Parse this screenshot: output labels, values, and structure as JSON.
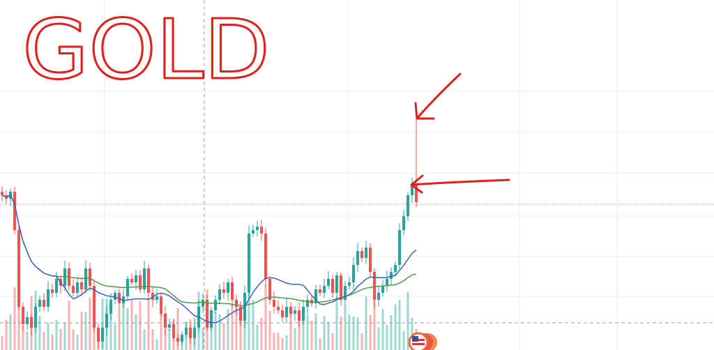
{
  "annotation_text": "GOLD",
  "colors": {
    "up": "#26a69a",
    "down": "#ef5350",
    "ma_fast": "#3f5fbf",
    "ma_slow": "#4c9a44",
    "annotation": "#e0201c",
    "grid": "#eeeeee",
    "crosshair": "#999999",
    "price_line": "#d0785a"
  },
  "chart_data": {
    "type": "candlestick",
    "title": "",
    "xlabel": "",
    "ylabel": "",
    "axis_labels_shown": false,
    "grid": true,
    "ylim": [
      0,
      500
    ],
    "closes": [
      220,
      215,
      225,
      170,
      60,
      35,
      45,
      30,
      60,
      70,
      60,
      85,
      80,
      100,
      90,
      115,
      90,
      80,
      95,
      85,
      115,
      90,
      30,
      10,
      30,
      50,
      70,
      80,
      65,
      75,
      100,
      95,
      105,
      85,
      115,
      80,
      70,
      75,
      50,
      30,
      35,
      15,
      10,
      20,
      30,
      15,
      30,
      60,
      70,
      30,
      55,
      70,
      85,
      80,
      95,
      70,
      60,
      40,
      80,
      165,
      170,
      175,
      165,
      100,
      70,
      60,
      55,
      45,
      60,
      50,
      55,
      40,
      60,
      70,
      65,
      85,
      80,
      90,
      100,
      80,
      105,
      70,
      90,
      95,
      120,
      140,
      130,
      145,
      110,
      70,
      80,
      90,
      100,
      110,
      120,
      170,
      190,
      220,
      235,
      210
    ],
    "last_candle_high": 330,
    "price_line": 207,
    "crosshair_price": 37,
    "indicators": [
      "moving-average-fast",
      "moving-average-slow",
      "volume"
    ]
  },
  "icons": {
    "flag": "us-flag-icon"
  }
}
